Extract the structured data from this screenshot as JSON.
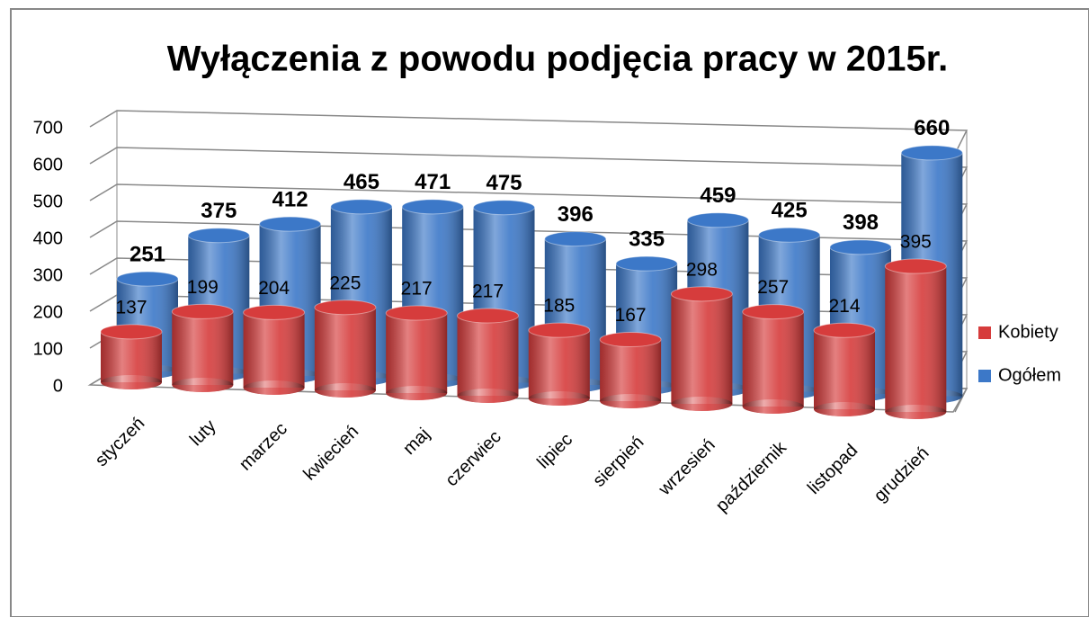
{
  "chart_data": {
    "type": "bar3d",
    "title": "Wyłączenia z powodu podjęcia pracy w 2015r.",
    "categories": [
      "styczeń",
      "luty",
      "marzec",
      "kwiecień",
      "maj",
      "czerwiec",
      "lipiec",
      "sierpień",
      "wrzesień",
      "październik",
      "listopad",
      "grudzień"
    ],
    "series": [
      {
        "name": "Kobiety",
        "color": "#d63c3c",
        "values": [
          137,
          199,
          204,
          225,
          217,
          217,
          185,
          167,
          298,
          257,
          214,
          395
        ]
      },
      {
        "name": "Ogółem",
        "color": "#3c78c8",
        "values": [
          251,
          375,
          412,
          465,
          471,
          475,
          396,
          335,
          459,
          425,
          398,
          660
        ]
      }
    ],
    "ylim": [
      0,
      700
    ],
    "yticks": [
      0,
      100,
      200,
      300,
      400,
      500,
      600,
      700
    ],
    "grid": true,
    "legend": "right"
  }
}
